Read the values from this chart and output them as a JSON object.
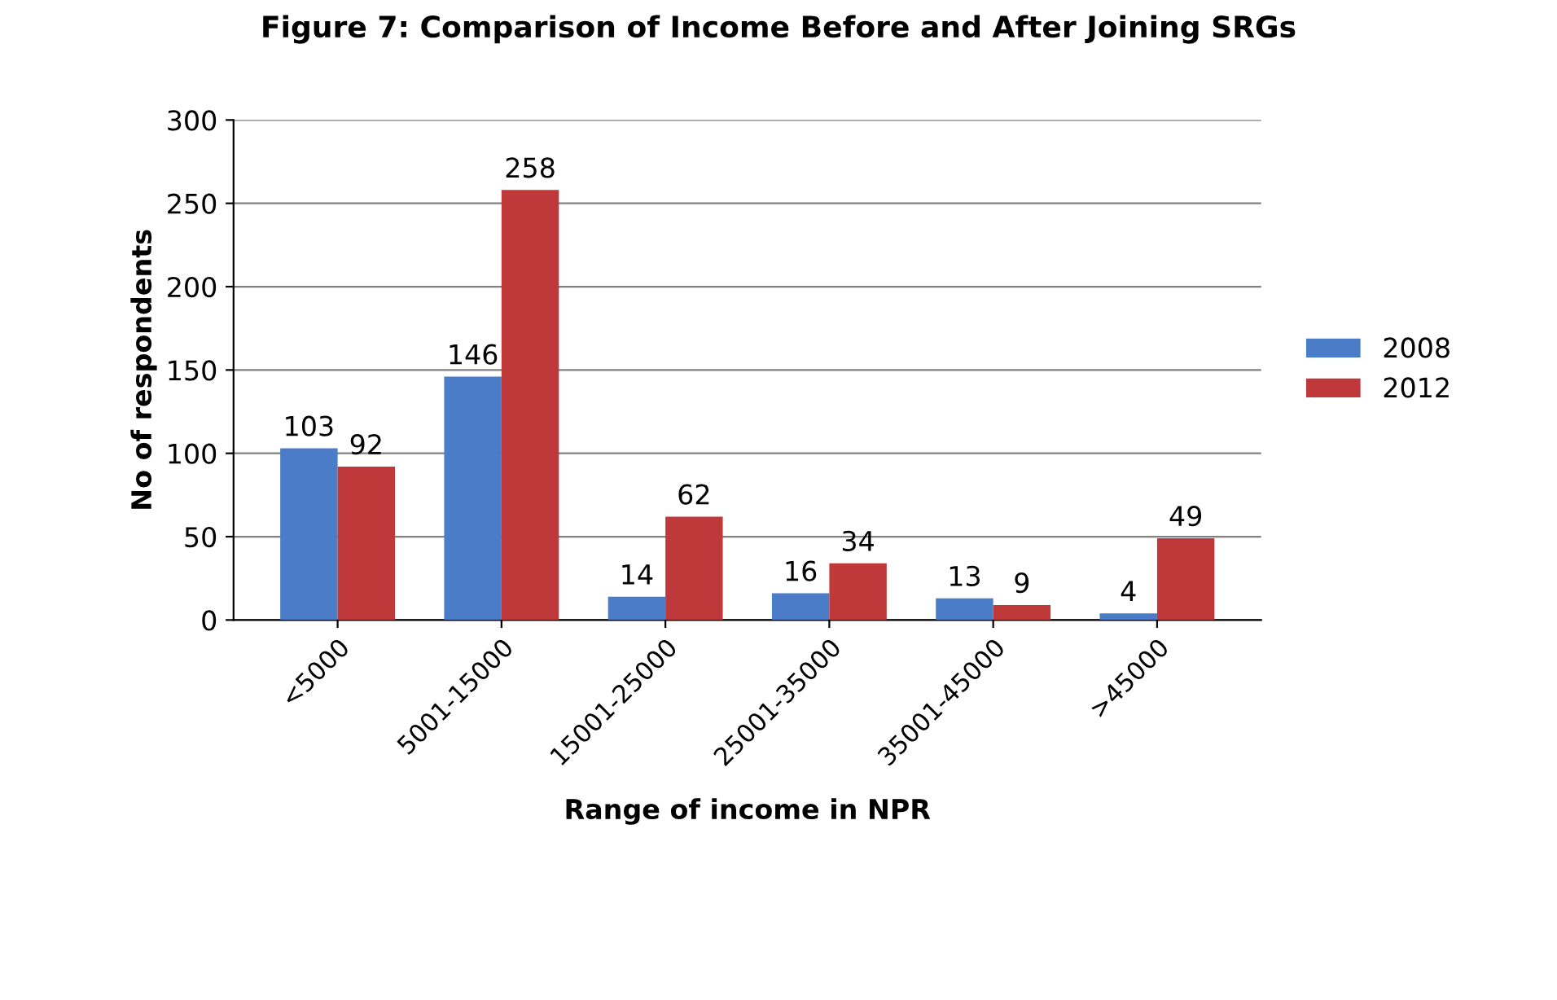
{
  "chart_data": {
    "type": "bar",
    "title": "Figure 7: Comparison of Income Before and After Joining SRGs",
    "xlabel": "Range of income in NPR",
    "ylabel": "No of respondents",
    "categories": [
      "<5000",
      "5001-15000",
      "15001-25000",
      "25001-35000",
      "35001-45000",
      ">45000"
    ],
    "series": [
      {
        "name": "2008",
        "color": "#4a7cc8",
        "values": [
          103,
          146,
          14,
          16,
          13,
          4
        ]
      },
      {
        "name": "2012",
        "color": "#c0393a",
        "values": [
          92,
          258,
          62,
          34,
          9,
          49
        ]
      }
    ],
    "ylim": [
      0,
      300
    ],
    "yticks": [
      0,
      50,
      100,
      150,
      200,
      250,
      300
    ],
    "grid": "y",
    "legend": "right",
    "data_labels": true
  }
}
